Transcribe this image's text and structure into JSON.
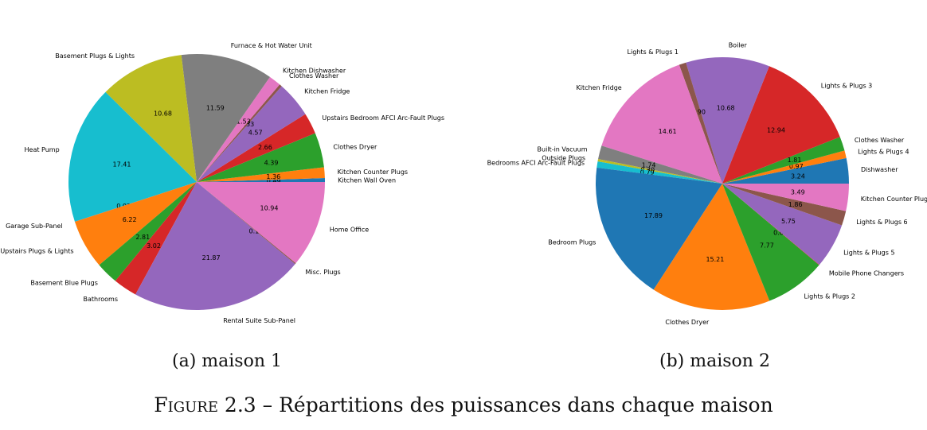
{
  "chart_data": [
    {
      "type": "pie",
      "caption": "(a) maison 1",
      "slices": [
        {
          "label": "Kitchen Wall Oven",
          "value": 0.49,
          "color": "#1f77b4"
        },
        {
          "label": "Kitchen Counter Plugs",
          "value": 1.36,
          "color": "#ff7f0e"
        },
        {
          "label": "Clothes Dryer",
          "value": 4.39,
          "color": "#2ca02c"
        },
        {
          "label": "Upstairs Bedroom AFCI Arc-Fault Plugs",
          "value": 2.66,
          "color": "#d62728"
        },
        {
          "label": "Kitchen Fridge",
          "value": 4.57,
          "color": "#9467bd"
        },
        {
          "label": "Clothes Washer",
          "value": 0.33,
          "color": "#8c564b"
        },
        {
          "label": "Kitchen Dishwasher",
          "value": 1.53,
          "color": "#e377c2"
        },
        {
          "label": "Furnace & Hot Water Unit",
          "value": 11.59,
          "color": "#7f7f7f"
        },
        {
          "label": "Basement Plugs & Lights",
          "value": 10.68,
          "color": "#bcbd22"
        },
        {
          "label": "Heat Pump",
          "value": 17.41,
          "color": "#17becf"
        },
        {
          "label": "Garage Sub-Panel",
          "value": 0.02,
          "color": "#1f77b4"
        },
        {
          "label": "Upstairs Plugs & Lights",
          "value": 6.22,
          "color": "#ff7f0e"
        },
        {
          "label": "Basement Blue Plugs",
          "value": 2.81,
          "color": "#2ca02c"
        },
        {
          "label": "Bathrooms",
          "value": 3.02,
          "color": "#d62728"
        },
        {
          "label": "Rental Suite Sub-Panel",
          "value": 21.87,
          "color": "#9467bd"
        },
        {
          "label": "Misc. Plugs",
          "value": 0.12,
          "color": "#8c564b"
        },
        {
          "label": "Home Office",
          "value": 10.94,
          "color": "#e377c2"
        }
      ]
    },
    {
      "type": "pie",
      "caption": "(b) maison 2",
      "slices": [
        {
          "label": "Dishwasher",
          "value": 3.24,
          "color": "#1f77b4"
        },
        {
          "label": "Lights & Plugs 4",
          "value": 0.97,
          "color": "#ff7f0e"
        },
        {
          "label": "Clothes Washer",
          "value": 1.81,
          "color": "#2ca02c"
        },
        {
          "label": "Lights & Plugs 3",
          "value": 12.94,
          "color": "#d62728"
        },
        {
          "label": "Boiler",
          "value": 10.68,
          "color": "#9467bd"
        },
        {
          "label": "Lights & Plugs 1",
          "value": 0.9,
          "color": "#8c564b"
        },
        {
          "label": "Kitchen Fridge",
          "value": 14.61,
          "color": "#e377c2"
        },
        {
          "label": "Built-in Vacuum",
          "value": 1.74,
          "color": "#7f7f7f"
        },
        {
          "label": "Outside Plugs",
          "value": 0.3,
          "color": "#bcbd22"
        },
        {
          "label": "Bedrooms AFCI Arc-Fault Plugs",
          "value": 0.79,
          "color": "#17becf"
        },
        {
          "label": "Bedroom Plugs",
          "value": 17.89,
          "color": "#1f77b4"
        },
        {
          "label": "Clothes Dryer",
          "value": 15.21,
          "color": "#ff7f0e"
        },
        {
          "label": "Lights & Plugs 2",
          "value": 7.77,
          "color": "#2ca02c"
        },
        {
          "label": "Mobile Phone Changers",
          "value": 0.05,
          "color": "#d62728"
        },
        {
          "label": "Lights & Plugs 5",
          "value": 5.75,
          "color": "#9467bd"
        },
        {
          "label": "Lights & Plugs 6",
          "value": 1.86,
          "color": "#8c564b"
        },
        {
          "label": "Kitchen Counter Plugs",
          "value": 3.49,
          "color": "#e377c2"
        }
      ]
    }
  ],
  "figure_caption": {
    "label": "Figure 2.3",
    "separator": "–",
    "text": "Répartitions des puissances dans chaque maison"
  }
}
